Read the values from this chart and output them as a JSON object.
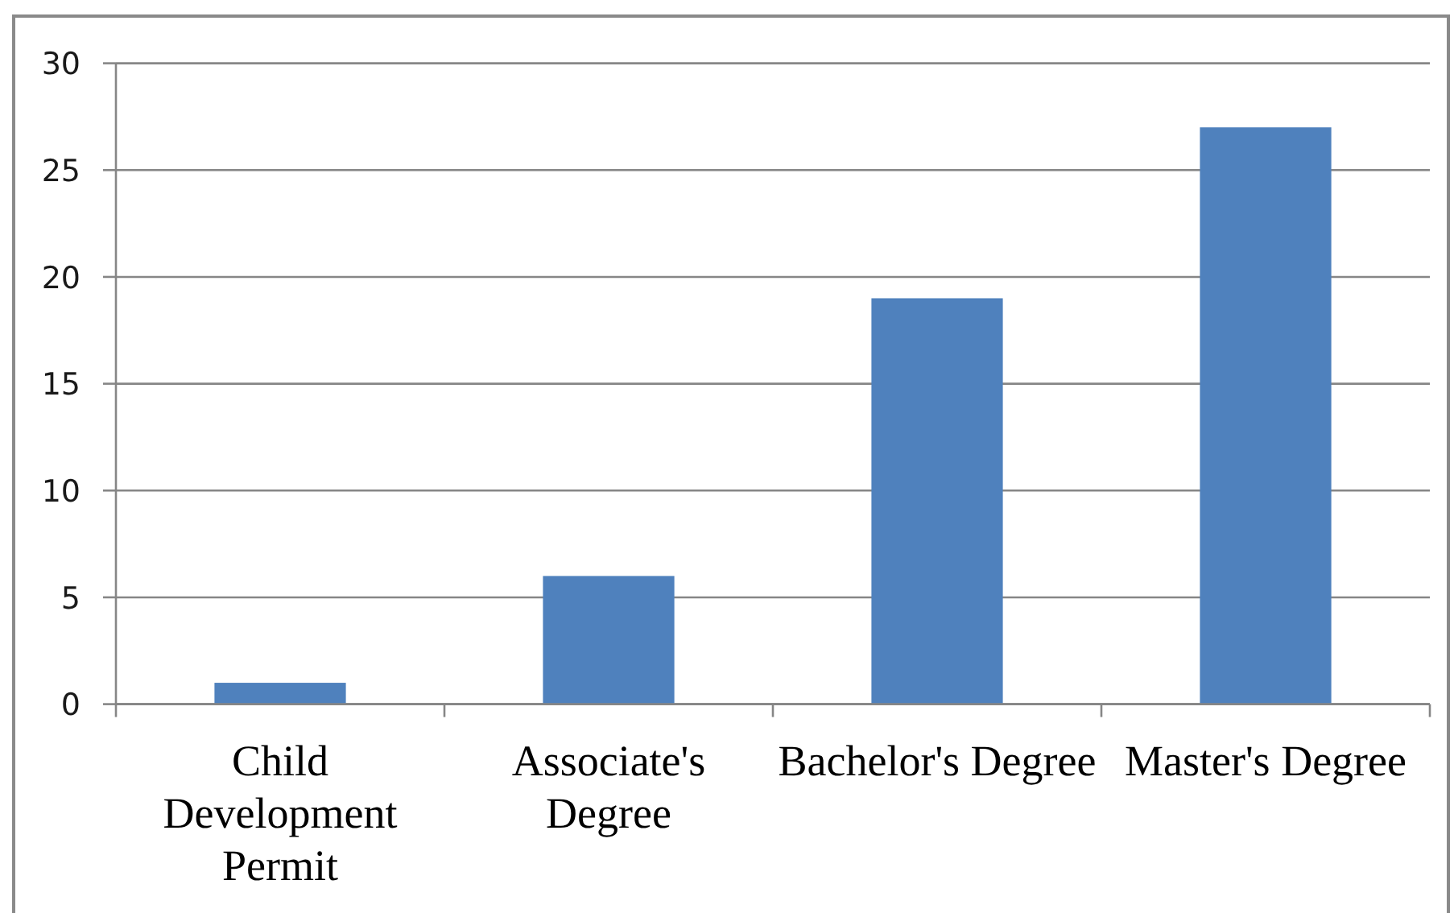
{
  "chart_data": {
    "type": "bar",
    "categories": [
      "Child Development Permit",
      "Associate's Degree",
      "Bachelor's Degree",
      "Master's Degree"
    ],
    "values": [
      1,
      6,
      19,
      27
    ],
    "color": "#4f81bd",
    "ylim": [
      0,
      30
    ],
    "yticks": [
      0,
      5,
      10,
      15,
      20,
      25,
      30
    ],
    "grid": "y"
  }
}
